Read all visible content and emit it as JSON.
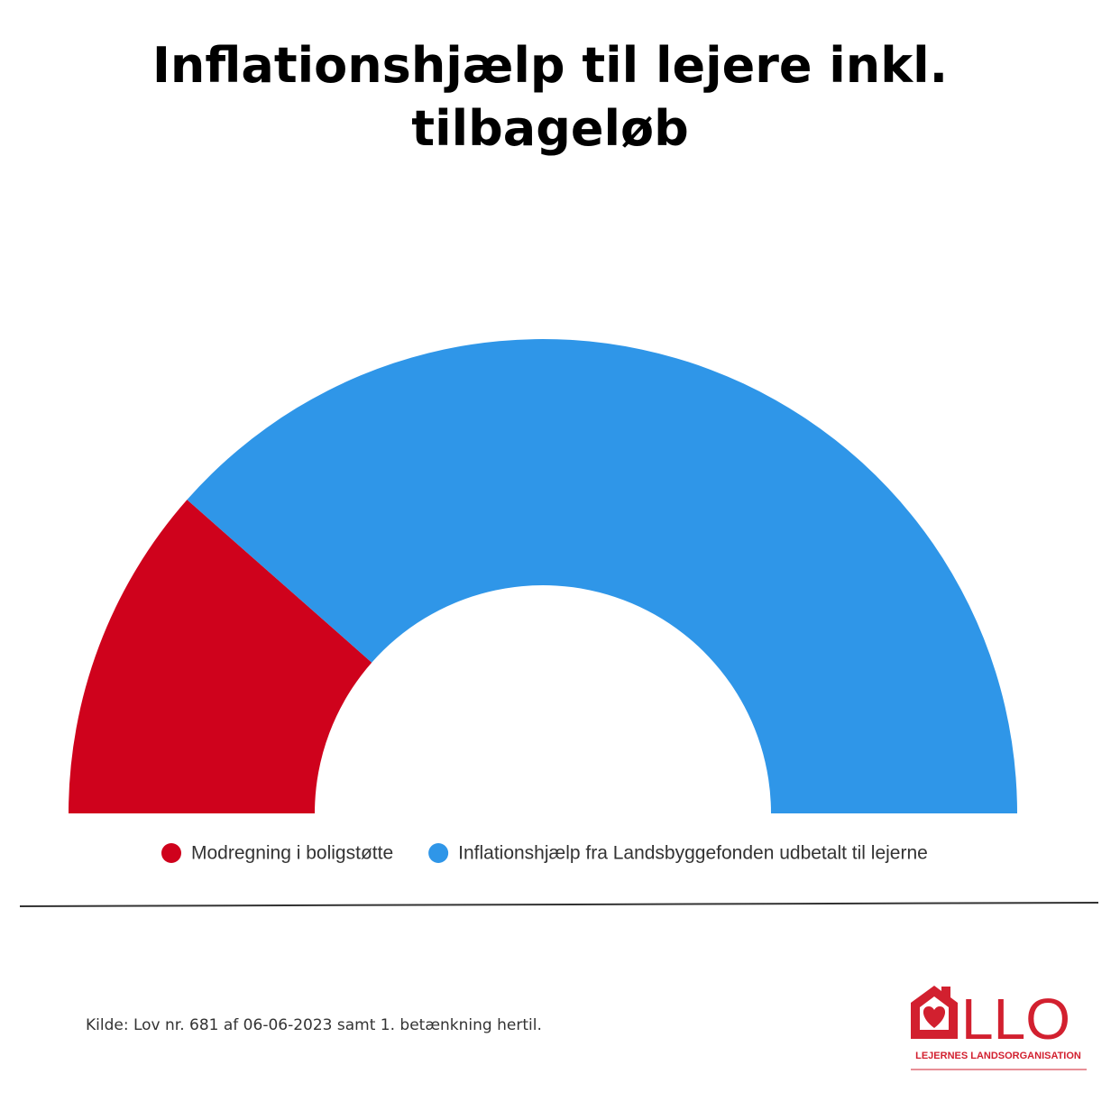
{
  "chart_data": {
    "type": "semidonut",
    "title": "Inflationshjælp til lejere inkl. tilbageløb",
    "categories": [
      "Modregning i boligstøtte",
      "Inflationshjælp fra Landsbyggefonden udbetalt til lejerne"
    ],
    "values": [
      23,
      77
    ],
    "colors": [
      "#cf021c",
      "#2f96e8"
    ],
    "legend": "bottom",
    "source": "Kilde: Lov nr. 681 af 06-06-2023 samt 1. betænkning hertil."
  },
  "logo": {
    "text": "LLO",
    "subtitle": "LEJERNES LANDSORGANISATION"
  }
}
